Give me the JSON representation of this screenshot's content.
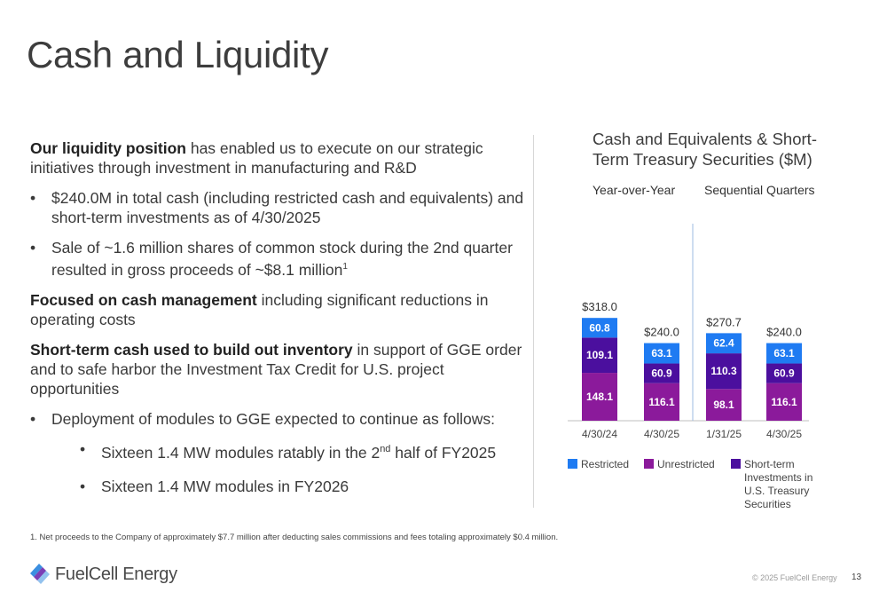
{
  "slide": {
    "title": "Cash and Liquidity",
    "page_number": "13",
    "copyright": "© 2025 FuelCell Energy",
    "company": "FuelCell Energy"
  },
  "left_panel": {
    "p1_bold": "Our liquidity position",
    "p1_rest": " has enabled us to execute on our strategic initiatives through investment in manufacturing and R&D",
    "b1": "$240.0M  in total cash (including restricted cash and equivalents) and short-term investments as of 4/30/2025",
    "b2_main": "Sale of ~1.6 million shares of common stock during the 2nd quarter resulted in gross proceeds of ~$8.1 million",
    "b2_sup": "1",
    "p2_bold": "Focused on cash management",
    "p2_rest": " including significant reductions in operating costs",
    "p3_bold": "Short-term cash used to build out inventory",
    "p3_rest": " in support of GGE order and to safe harbor the Investment Tax Credit for U.S. project opportunities",
    "b3": "Deployment of modules to GGE expected to continue as follows:",
    "s1_pre": "Sixteen 1.4 MW modules ratably in the 2",
    "s1_sup": "nd",
    "s1_post": " half of FY2025",
    "s2": "Sixteen 1.4 MW modules in FY2026"
  },
  "footnote": "1.    Net proceeds to the Company of approximately $7.7 million after deducting sales commissions and fees totaling approximately $0.4 million.",
  "chart_data": {
    "type": "bar",
    "stacked": true,
    "title": "Cash and Equivalents & Short-Term Treasury Securities ($M)",
    "groups": [
      "Year-over-Year",
      "Sequential Quarters"
    ],
    "categories": [
      "4/30/24",
      "4/30/25",
      "1/31/25",
      "4/30/25"
    ],
    "totals": [
      "$318.0",
      "$240.0",
      "$270.7",
      "$240.0"
    ],
    "series": [
      {
        "name": "Unrestricted",
        "color": "#8b1a9b",
        "values": [
          148.1,
          116.1,
          98.1,
          116.1
        ]
      },
      {
        "name": "Short-term Investments in U.S. Treasury Securities",
        "color": "#4b0f9e",
        "values": [
          109.1,
          60.9,
          110.3,
          60.9
        ]
      },
      {
        "name": "Restricted",
        "color": "#1f7bf2",
        "values": [
          60.8,
          63.1,
          62.4,
          63.1
        ]
      }
    ],
    "legend_order": [
      "Restricted",
      "Unrestricted",
      "Short-term Investments in U.S. Treasury Securities"
    ],
    "legend_lines": [
      [
        "Restricted"
      ],
      [
        "Unrestricted"
      ],
      [
        "Short-term",
        "Investments in",
        "U.S. Treasury",
        "Securities"
      ]
    ],
    "ylim": [
      0,
      320
    ]
  }
}
